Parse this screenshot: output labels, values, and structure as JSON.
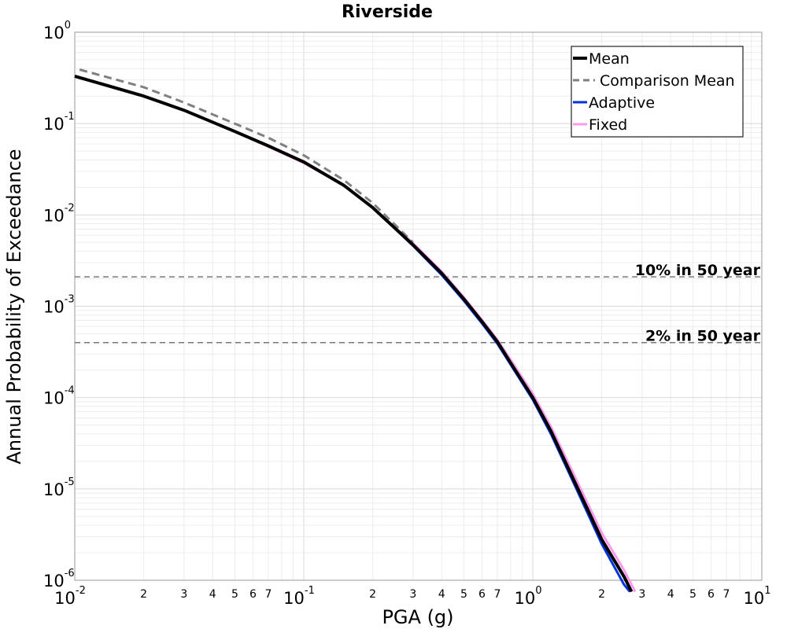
{
  "chart_data": {
    "type": "line",
    "title": "Riverside",
    "xlabel": "PGA (g)",
    "ylabel": "Annual Probability of Exceedance",
    "xscale": "log",
    "yscale": "log",
    "xlim": [
      0.01,
      10
    ],
    "ylim": [
      1e-06,
      1
    ],
    "grid": true,
    "legend_position": "top-right",
    "x_ticks": [
      {
        "base": "10",
        "exp": "-2"
      },
      {
        "base": "10",
        "exp": "-1"
      },
      {
        "base": "10",
        "exp": "0"
      },
      {
        "base": "10",
        "exp": "1"
      }
    ],
    "x_minor_tick_labels": [
      "2",
      "3",
      "4",
      "5",
      "6",
      "7"
    ],
    "y_ticks": [
      {
        "base": "10",
        "exp": "0"
      },
      {
        "base": "10",
        "exp": "-1"
      },
      {
        "base": "10",
        "exp": "-2"
      },
      {
        "base": "10",
        "exp": "-3"
      },
      {
        "base": "10",
        "exp": "-4"
      },
      {
        "base": "10",
        "exp": "-5"
      },
      {
        "base": "10",
        "exp": "-6"
      }
    ],
    "series": [
      {
        "name": "Mean",
        "color": "#000000",
        "style": "solid",
        "x": [
          0.01,
          0.02,
          0.03,
          0.05,
          0.07,
          0.1,
          0.15,
          0.2,
          0.3,
          0.4,
          0.5,
          0.6,
          0.7,
          0.8,
          1.0,
          1.2,
          1.5,
          2.0,
          2.5,
          2.7
        ],
        "y": [
          0.33,
          0.2,
          0.14,
          0.082,
          0.057,
          0.038,
          0.021,
          0.012,
          0.0047,
          0.0023,
          0.0012,
          0.00068,
          0.00041,
          0.00024,
          0.0001,
          4.3e-05,
          1.3e-05,
          2.8e-06,
          1.1e-06,
          7.5e-07
        ]
      },
      {
        "name": "Comparison Mean",
        "color": "#808080",
        "style": "dashed",
        "x": [
          0.0105,
          0.02,
          0.03,
          0.05,
          0.07,
          0.1,
          0.15,
          0.2,
          0.3
        ],
        "y": [
          0.39,
          0.25,
          0.17,
          0.1,
          0.07,
          0.045,
          0.024,
          0.0135,
          0.005
        ]
      },
      {
        "name": "Adaptive",
        "color": "#0033dd",
        "style": "solid",
        "x": [
          0.01,
          0.02,
          0.03,
          0.05,
          0.07,
          0.1,
          0.15,
          0.2,
          0.3,
          0.4,
          0.5,
          0.6,
          0.7,
          0.8,
          1.0,
          1.2,
          1.5,
          2.0,
          2.5,
          2.65
        ],
        "y": [
          0.33,
          0.2,
          0.14,
          0.082,
          0.057,
          0.038,
          0.021,
          0.012,
          0.0046,
          0.0022,
          0.00115,
          0.00065,
          0.00039,
          0.00023,
          9.5e-05,
          4e-05,
          1.2e-05,
          2.5e-06,
          9e-07,
          7.5e-07
        ]
      },
      {
        "name": "Fixed",
        "color": "#ff99ee",
        "style": "solid",
        "x": [
          0.01,
          0.02,
          0.03,
          0.05,
          0.07,
          0.1,
          0.15,
          0.2,
          0.3,
          0.4,
          0.5,
          0.6,
          0.7,
          0.8,
          1.0,
          1.2,
          1.5,
          2.0,
          2.5,
          2.8
        ],
        "y": [
          0.33,
          0.2,
          0.14,
          0.081,
          0.056,
          0.037,
          0.021,
          0.012,
          0.0049,
          0.0024,
          0.00125,
          0.00071,
          0.00043,
          0.00026,
          0.00011,
          4.8e-05,
          1.5e-05,
          3.3e-06,
          1.3e-06,
          7.5e-07
        ]
      }
    ],
    "reference_lines": [
      {
        "label": "10% in 50 year",
        "y": 0.0021
      },
      {
        "label": "2% in 50 year",
        "y": 0.0004
      }
    ]
  }
}
